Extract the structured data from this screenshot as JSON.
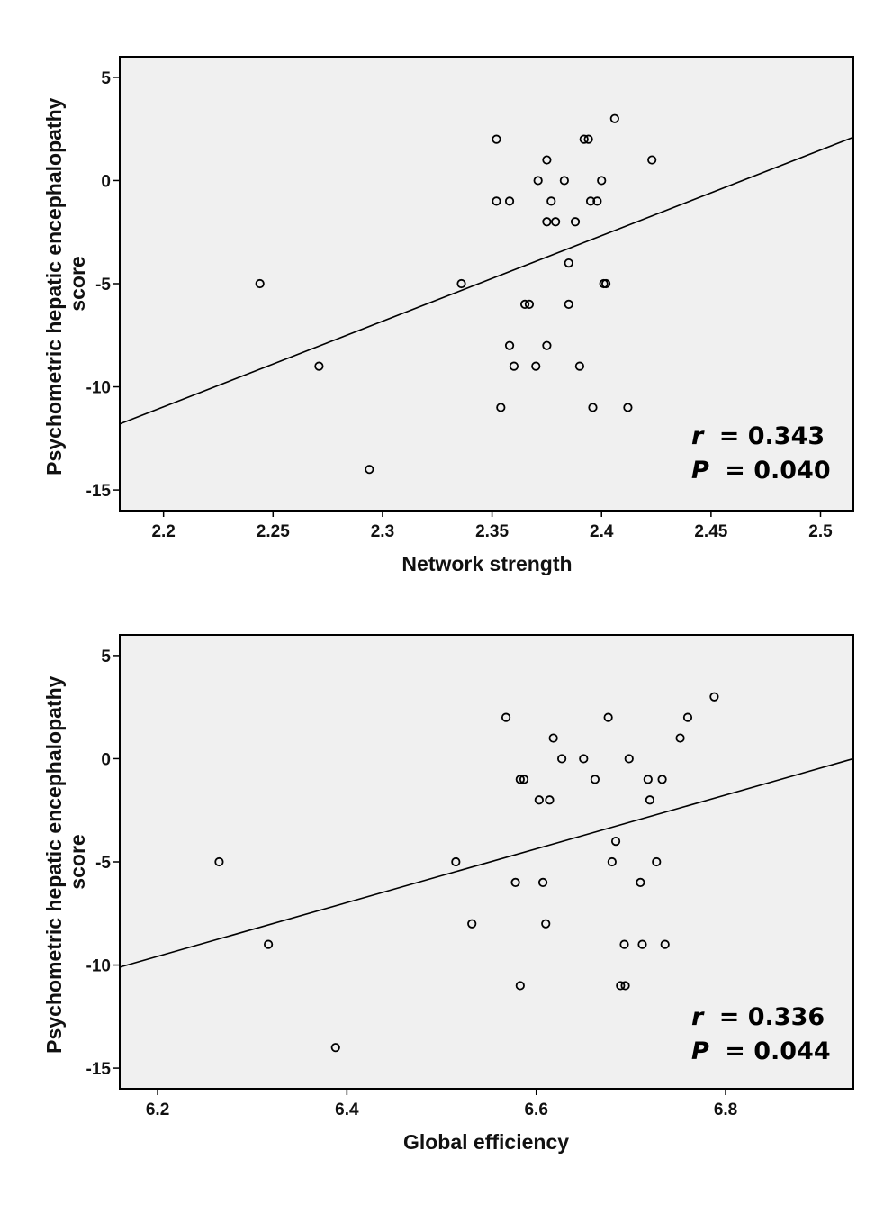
{
  "chart_data": [
    {
      "type": "scatter",
      "xlabel": "Network strength",
      "ylabel": [
        "Psychometric hepatic encephalopathy",
        "score"
      ],
      "xlim": [
        2.18,
        2.515
      ],
      "ylim": [
        -16,
        6
      ],
      "xticks": [
        "2.2",
        "2.25",
        "2.3",
        "2.35",
        "2.4",
        "2.45",
        "2.5"
      ],
      "yticks": [
        "5",
        "0",
        "-5",
        "-10",
        "-15"
      ],
      "grid": false,
      "fit_line": {
        "y_at_xmin": -11.8,
        "y_at_xmax": 2.1
      },
      "points": [
        [
          2.244,
          -5
        ],
        [
          2.271,
          -9
        ],
        [
          2.294,
          -14
        ],
        [
          2.336,
          -5
        ],
        [
          2.352,
          2
        ],
        [
          2.352,
          -1
        ],
        [
          2.354,
          -11
        ],
        [
          2.358,
          -1
        ],
        [
          2.358,
          -8
        ],
        [
          2.36,
          -9
        ],
        [
          2.365,
          -6
        ],
        [
          2.367,
          -6
        ],
        [
          2.37,
          -9
        ],
        [
          2.371,
          0
        ],
        [
          2.375,
          1
        ],
        [
          2.375,
          -2
        ],
        [
          2.375,
          -8
        ],
        [
          2.377,
          -1
        ],
        [
          2.379,
          -2
        ],
        [
          2.383,
          0
        ],
        [
          2.385,
          -4
        ],
        [
          2.385,
          -6
        ],
        [
          2.388,
          -2
        ],
        [
          2.39,
          -9
        ],
        [
          2.392,
          2
        ],
        [
          2.394,
          2
        ],
        [
          2.395,
          -1
        ],
        [
          2.396,
          -11
        ],
        [
          2.398,
          -1
        ],
        [
          2.4,
          0
        ],
        [
          2.401,
          -5
        ],
        [
          2.402,
          -5
        ],
        [
          2.406,
          3
        ],
        [
          2.412,
          -11
        ],
        [
          2.423,
          1
        ]
      ],
      "stat_r_label": "r",
      "stat_r_value": "= 0.343",
      "stat_p_label": "P",
      "stat_p_value": "= 0.040"
    },
    {
      "type": "scatter",
      "xlabel": "Global efficiency",
      "ylabel": [
        "Psychometric hepatic encephalopathy",
        "score"
      ],
      "xlim": [
        6.16,
        6.935
      ],
      "ylim": [
        -16,
        6
      ],
      "xticks": [
        "6.2",
        "6.4",
        "6.6",
        "6.8"
      ],
      "yticks": [
        "5",
        "0",
        "-5",
        "-10",
        "-15"
      ],
      "grid": false,
      "fit_line": {
        "y_at_xmin": -10.1,
        "y_at_xmax": 0.0
      },
      "points": [
        [
          6.265,
          -5
        ],
        [
          6.317,
          -9
        ],
        [
          6.388,
          -14
        ],
        [
          6.515,
          -5
        ],
        [
          6.532,
          -8
        ],
        [
          6.568,
          2
        ],
        [
          6.578,
          -6
        ],
        [
          6.583,
          -1
        ],
        [
          6.583,
          -11
        ],
        [
          6.587,
          -1
        ],
        [
          6.603,
          -2
        ],
        [
          6.607,
          -6
        ],
        [
          6.61,
          -8
        ],
        [
          6.614,
          -2
        ],
        [
          6.618,
          1
        ],
        [
          6.627,
          0
        ],
        [
          6.65,
          0
        ],
        [
          6.662,
          -1
        ],
        [
          6.676,
          2
        ],
        [
          6.68,
          -5
        ],
        [
          6.684,
          -4
        ],
        [
          6.689,
          -11
        ],
        [
          6.693,
          -9
        ],
        [
          6.694,
          -11
        ],
        [
          6.698,
          0
        ],
        [
          6.71,
          -6
        ],
        [
          6.712,
          -9
        ],
        [
          6.718,
          -1
        ],
        [
          6.72,
          -2
        ],
        [
          6.727,
          -5
        ],
        [
          6.733,
          -1
        ],
        [
          6.736,
          -9
        ],
        [
          6.752,
          1
        ],
        [
          6.76,
          2
        ],
        [
          6.788,
          3
        ]
      ],
      "stat_r_label": "r",
      "stat_r_value": "= 0.336",
      "stat_p_label": "P",
      "stat_p_value": "= 0.044"
    }
  ]
}
